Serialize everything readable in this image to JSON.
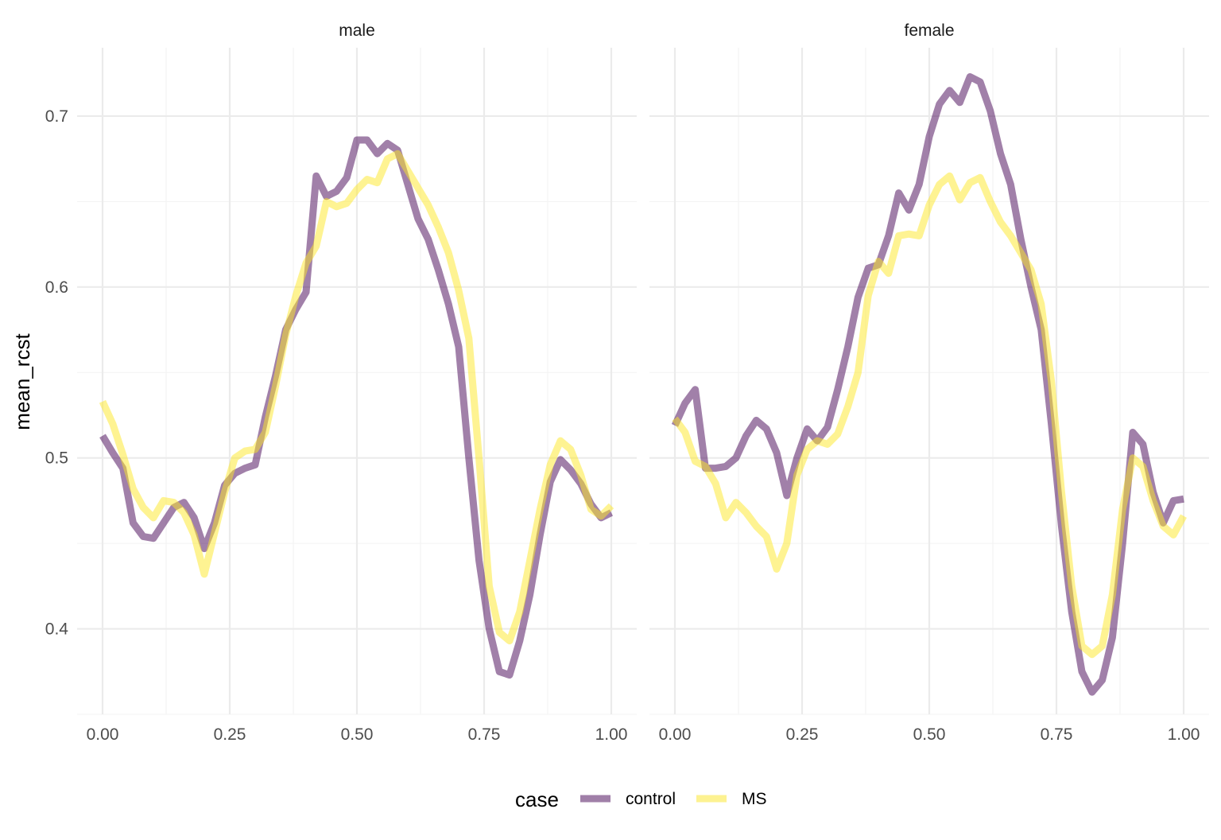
{
  "chart_data": {
    "type": "line",
    "ylabel": "mean_rcst",
    "legend": {
      "title": "case",
      "placement": "bottom"
    },
    "xlim": [
      0,
      1
    ],
    "ylim": [
      0.35,
      0.74
    ],
    "x_ticks": [
      "0.00",
      "0.25",
      "0.50",
      "0.75",
      "1.00"
    ],
    "y_ticks": [
      "0.4",
      "0.5",
      "0.6",
      "0.7"
    ],
    "colors": {
      "control": "#440154",
      "MS": "#fde725"
    },
    "panels": [
      {
        "label": "male",
        "series": [
          {
            "name": "control",
            "x": [
              0,
              0.02,
              0.04,
              0.06,
              0.08,
              0.1,
              0.12,
              0.14,
              0.16,
              0.18,
              0.2,
              0.22,
              0.24,
              0.26,
              0.28,
              0.3,
              0.32,
              0.34,
              0.36,
              0.38,
              0.4,
              0.42,
              0.44,
              0.46,
              0.48,
              0.5,
              0.52,
              0.54,
              0.56,
              0.58,
              0.6,
              0.62,
              0.64,
              0.66,
              0.68,
              0.7,
              0.72,
              0.74,
              0.76,
              0.78,
              0.8,
              0.82,
              0.84,
              0.86,
              0.88,
              0.9,
              0.92,
              0.94,
              0.96,
              0.98,
              1.0
            ],
            "y": [
              0.513,
              0.503,
              0.494,
              0.462,
              0.454,
              0.453,
              0.462,
              0.471,
              0.474,
              0.465,
              0.447,
              0.462,
              0.484,
              0.491,
              0.494,
              0.496,
              0.524,
              0.548,
              0.575,
              0.587,
              0.597,
              0.665,
              0.653,
              0.656,
              0.664,
              0.686,
              0.686,
              0.678,
              0.684,
              0.68,
              0.66,
              0.64,
              0.628,
              0.61,
              0.59,
              0.565,
              0.5,
              0.44,
              0.4,
              0.375,
              0.373,
              0.393,
              0.42,
              0.455,
              0.486,
              0.499,
              0.493,
              0.485,
              0.473,
              0.465,
              0.468
            ]
          },
          {
            "name": "MS",
            "x": [
              0,
              0.02,
              0.04,
              0.06,
              0.08,
              0.1,
              0.12,
              0.14,
              0.16,
              0.18,
              0.2,
              0.22,
              0.24,
              0.26,
              0.28,
              0.3,
              0.32,
              0.34,
              0.36,
              0.38,
              0.4,
              0.42,
              0.44,
              0.46,
              0.48,
              0.5,
              0.52,
              0.54,
              0.56,
              0.58,
              0.6,
              0.62,
              0.64,
              0.66,
              0.68,
              0.7,
              0.72,
              0.74,
              0.76,
              0.78,
              0.8,
              0.82,
              0.84,
              0.86,
              0.88,
              0.9,
              0.92,
              0.94,
              0.96,
              0.98,
              1.0
            ],
            "y": [
              0.533,
              0.52,
              0.502,
              0.482,
              0.471,
              0.465,
              0.475,
              0.474,
              0.468,
              0.455,
              0.432,
              0.456,
              0.48,
              0.5,
              0.504,
              0.505,
              0.515,
              0.542,
              0.572,
              0.595,
              0.614,
              0.624,
              0.65,
              0.647,
              0.649,
              0.657,
              0.663,
              0.661,
              0.675,
              0.678,
              0.668,
              0.658,
              0.648,
              0.635,
              0.62,
              0.598,
              0.57,
              0.5,
              0.425,
              0.398,
              0.393,
              0.41,
              0.44,
              0.47,
              0.496,
              0.51,
              0.505,
              0.49,
              0.47,
              0.466,
              0.472
            ]
          }
        ]
      },
      {
        "label": "female",
        "series": [
          {
            "name": "control",
            "x": [
              0,
              0.02,
              0.04,
              0.06,
              0.08,
              0.1,
              0.12,
              0.14,
              0.16,
              0.18,
              0.2,
              0.22,
              0.24,
              0.26,
              0.28,
              0.3,
              0.32,
              0.34,
              0.36,
              0.38,
              0.4,
              0.42,
              0.44,
              0.46,
              0.48,
              0.5,
              0.52,
              0.54,
              0.56,
              0.58,
              0.6,
              0.62,
              0.64,
              0.66,
              0.68,
              0.7,
              0.72,
              0.74,
              0.76,
              0.78,
              0.8,
              0.82,
              0.84,
              0.86,
              0.88,
              0.9,
              0.92,
              0.94,
              0.96,
              0.98,
              1.0
            ],
            "y": [
              0.519,
              0.532,
              0.54,
              0.494,
              0.494,
              0.495,
              0.5,
              0.513,
              0.522,
              0.517,
              0.503,
              0.478,
              0.5,
              0.517,
              0.51,
              0.518,
              0.54,
              0.565,
              0.594,
              0.611,
              0.613,
              0.63,
              0.655,
              0.645,
              0.66,
              0.688,
              0.707,
              0.715,
              0.708,
              0.723,
              0.72,
              0.703,
              0.678,
              0.66,
              0.628,
              0.6,
              0.575,
              0.52,
              0.46,
              0.41,
              0.375,
              0.363,
              0.37,
              0.395,
              0.45,
              0.515,
              0.508,
              0.48,
              0.462,
              0.475,
              0.476
            ]
          },
          {
            "name": "MS",
            "x": [
              0,
              0.02,
              0.04,
              0.06,
              0.08,
              0.1,
              0.12,
              0.14,
              0.16,
              0.18,
              0.2,
              0.22,
              0.24,
              0.26,
              0.28,
              0.3,
              0.32,
              0.34,
              0.36,
              0.38,
              0.4,
              0.42,
              0.44,
              0.46,
              0.48,
              0.5,
              0.52,
              0.54,
              0.56,
              0.58,
              0.6,
              0.62,
              0.64,
              0.66,
              0.68,
              0.7,
              0.72,
              0.74,
              0.76,
              0.78,
              0.8,
              0.82,
              0.84,
              0.86,
              0.88,
              0.9,
              0.92,
              0.94,
              0.96,
              0.98,
              1.0
            ],
            "y": [
              0.523,
              0.515,
              0.498,
              0.495,
              0.485,
              0.465,
              0.474,
              0.468,
              0.46,
              0.454,
              0.435,
              0.45,
              0.49,
              0.505,
              0.51,
              0.508,
              0.514,
              0.53,
              0.55,
              0.595,
              0.615,
              0.608,
              0.63,
              0.631,
              0.63,
              0.648,
              0.66,
              0.665,
              0.651,
              0.661,
              0.664,
              0.65,
              0.638,
              0.63,
              0.62,
              0.61,
              0.59,
              0.545,
              0.48,
              0.425,
              0.39,
              0.385,
              0.39,
              0.42,
              0.47,
              0.5,
              0.495,
              0.475,
              0.46,
              0.455,
              0.466
            ]
          }
        ]
      }
    ]
  }
}
